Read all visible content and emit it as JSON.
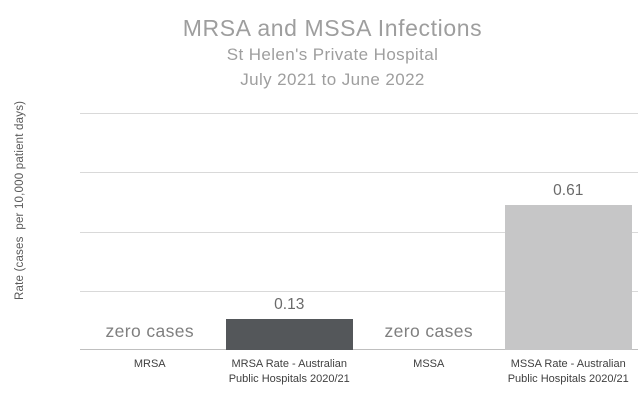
{
  "header": {
    "title": "MRSA and MSSA Infections",
    "subtitle": "St Helen's Private Hospital",
    "period": "July 2021 to June 2022"
  },
  "y_axis": {
    "label": "Rate (cases  per 10,000 patient days)",
    "tick_labels_visible": false
  },
  "x_axis": {
    "labels": [
      "MRSA",
      "MRSA Rate - Australian\nPublic Hospitals 2020/21",
      "MSSA",
      "MSSA Rate - Australian\nPublic Hospitals 2020/21"
    ]
  },
  "chart_data": {
    "type": "bar",
    "title": "MRSA and MSSA Infections",
    "subtitle": "St Helen's Private Hospital",
    "period": "July 2021 to June 2022",
    "categories": [
      "MRSA",
      "MRSA Rate - Australian Public Hospitals 2020/21",
      "MSSA",
      "MSSA Rate - Australian Public Hospitals 2020/21"
    ],
    "values": [
      0,
      0.13,
      0,
      0.61
    ],
    "annotations": [
      "zero cases",
      "0.13",
      "zero cases",
      "0.61"
    ],
    "bar_colors": [
      "",
      "#54575a",
      "",
      "#c6c6c7"
    ],
    "xlabel": "",
    "ylabel": "Rate (cases  per 10,000 patient days)",
    "ylim": [
      0,
      1.0
    ],
    "gridline_interval": 0.25,
    "grid": "horizontal",
    "legend": false
  },
  "colors": {
    "title_text": "#9e9e9e",
    "axis_text": "#404040",
    "value_label_text": "#6a6a6a",
    "zero_label_text": "#7f7f7f",
    "bar_dark": "#54575a",
    "bar_light": "#c6c6c7",
    "gridline": "#d9d9d9",
    "axis_line": "#bfbfbf",
    "background": "#ffffff"
  }
}
